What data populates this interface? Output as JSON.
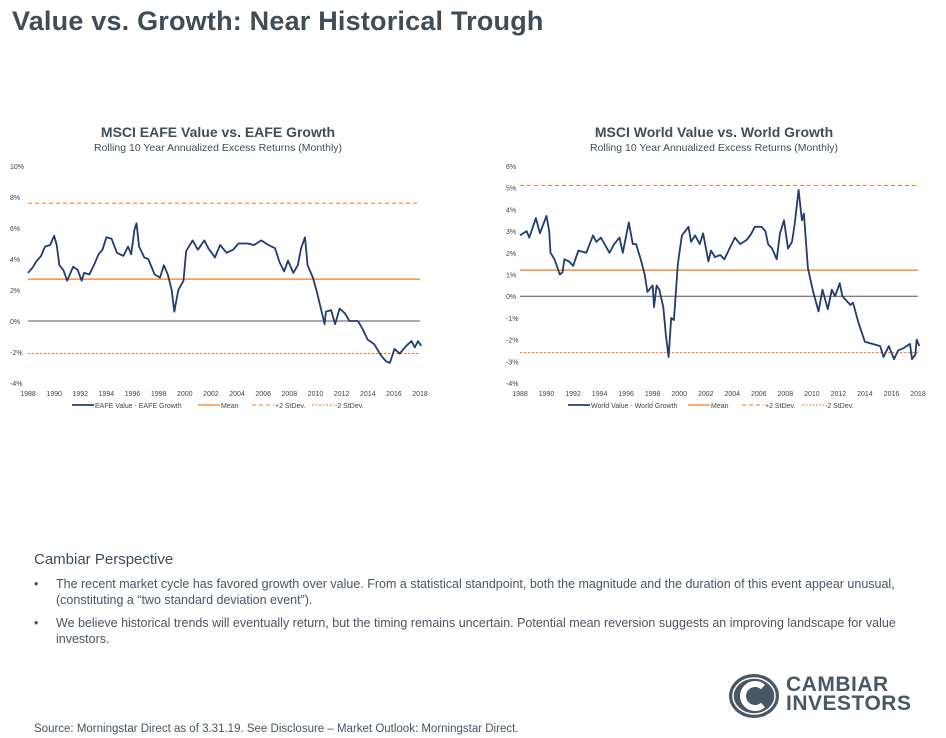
{
  "page": {
    "title": "Value vs. Growth: Near Historical Trough",
    "perspective_heading": "Cambiar Perspective",
    "bullets": [
      "The recent market cycle has favored growth over value. From a statistical standpoint, both the magnitude and the duration of this event appear unusual, (constituting a “two standard deviation event”).",
      "We believe historical trends will eventually return, but the timing remains uncertain.  Potential mean reversion suggests an improving landscape for value investors."
    ],
    "bullet_glyph": "•",
    "source": "Source: Morningstar Direct as of 3.31.19.  See Disclosure – Market Outlook: Morningstar Direct.",
    "logo": {
      "line1": "CAMBIAR",
      "line2": "INVESTORS"
    }
  },
  "colors": {
    "series": "#1f3d70",
    "mean": "#f47b20",
    "stdev": "#f47b20",
    "zero": "#555555",
    "text": "#3f4d59"
  },
  "chart_data": [
    {
      "type": "line",
      "title": "MSCI EAFE Value vs. EAFE Growth",
      "subtitle": "Rolling 10 Year Annualized Excess Returns (Monthly)",
      "xlim": [
        1988,
        2018
      ],
      "ylim": [
        -4,
        10
      ],
      "x_ticks": [
        "1988",
        "1990",
        "1992",
        "1994",
        "1996",
        "1998",
        "2000",
        "2002",
        "2004",
        "2006",
        "2008",
        "2010",
        "2012",
        "2014",
        "2016",
        "2018"
      ],
      "y_ticks": [
        "10%",
        "8%",
        "6%",
        "4%",
        "2%",
        "0%",
        "-2%",
        "-4%"
      ],
      "y_tick_values": [
        10,
        8,
        6,
        4,
        2,
        0,
        -2,
        -4
      ],
      "grid": false,
      "legend_position": "bottom",
      "legend": [
        "EAFE Value - EAFE Growth",
        "Mean",
        "+2 StDev.",
        "-2 StDev."
      ],
      "mean": 2.7,
      "plus2sd": 7.6,
      "minus2sd": -2.1,
      "series": [
        {
          "name": "EAFE Value - EAFE Growth",
          "x": [
            1988.0,
            1988.4,
            1988.6,
            1989.0,
            1989.3,
            1989.7,
            1990.0,
            1990.2,
            1990.4,
            1990.7,
            1991.0,
            1991.2,
            1991.45,
            1991.8,
            1992.1,
            1992.3,
            1992.7,
            1993.1,
            1993.4,
            1993.7,
            1994.0,
            1994.4,
            1994.8,
            1995.3,
            1995.65,
            1995.9,
            1996.15,
            1996.3,
            1996.5,
            1996.9,
            1997.2,
            1997.7,
            1998.1,
            1998.4,
            1998.7,
            1999.0,
            1999.2,
            1999.5,
            1999.9,
            2000.1,
            2000.6,
            2001.0,
            2001.5,
            2001.8,
            2002.3,
            2002.7,
            2003.2,
            2003.7,
            2004.1,
            2004.8,
            2005.3,
            2005.85,
            2006.4,
            2006.9,
            2007.25,
            2007.6,
            2007.9,
            2008.3,
            2008.65,
            2008.9,
            2009.2,
            2009.4,
            2009.8,
            2010.1,
            2010.3,
            2010.7,
            2010.8,
            2011.2,
            2011.5,
            2011.85,
            2012.25,
            2012.6,
            2013.25,
            2013.6,
            2014.0,
            2014.5,
            2015.0,
            2015.4,
            2015.7,
            2016.05,
            2016.45,
            2016.95,
            2017.35,
            2017.6,
            2017.85,
            2018.1
          ],
          "y": [
            3.1,
            3.5,
            3.8,
            4.2,
            4.8,
            4.9,
            5.5,
            4.9,
            3.6,
            3.3,
            2.6,
            3.0,
            3.5,
            3.3,
            2.6,
            3.1,
            3.0,
            3.7,
            4.3,
            4.6,
            5.4,
            5.3,
            4.4,
            4.2,
            4.8,
            4.3,
            5.9,
            6.3,
            4.8,
            4.1,
            4.0,
            3.0,
            2.8,
            3.6,
            3.0,
            2.0,
            0.6,
            2.0,
            2.6,
            4.5,
            5.2,
            4.6,
            5.2,
            4.7,
            4.1,
            4.9,
            4.4,
            4.6,
            5.0,
            5.0,
            4.9,
            5.2,
            4.9,
            4.7,
            3.8,
            3.2,
            3.9,
            3.1,
            3.6,
            4.7,
            5.4,
            3.6,
            2.8,
            1.9,
            1.2,
            -0.2,
            0.6,
            0.7,
            -0.2,
            0.8,
            0.5,
            0.0,
            0.0,
            -0.5,
            -1.2,
            -1.5,
            -2.2,
            -2.6,
            -2.7,
            -1.8,
            -2.1,
            -1.6,
            -1.3,
            -1.7,
            -1.3,
            -1.6
          ]
        }
      ]
    },
    {
      "type": "line",
      "title": "MSCI World Value vs. World Growth",
      "subtitle": "Rolling 10 Year Annualized Excess Returns (Monthly)",
      "xlim": [
        1988,
        2018
      ],
      "ylim": [
        -4,
        6
      ],
      "x_ticks": [
        "1988",
        "1990",
        "1992",
        "1994",
        "1996",
        "1998",
        "2000",
        "2002",
        "2004",
        "2006",
        "2008",
        "2010",
        "2012",
        "2014",
        "2016",
        "2018"
      ],
      "y_ticks": [
        "6%",
        "5%",
        "4%",
        "3%",
        "2%",
        "1%",
        "0%",
        "-1%",
        "-2%",
        "-3%",
        "-4%"
      ],
      "y_tick_values": [
        6,
        5,
        4,
        3,
        2,
        1,
        0,
        -1,
        -2,
        -3,
        -4
      ],
      "grid": false,
      "legend_position": "bottom",
      "legend": [
        "World Value - World Growth",
        "Mean",
        "+2 StDev.",
        "-2 StDev."
      ],
      "mean": 1.2,
      "plus2sd": 5.1,
      "minus2sd": -2.6,
      "series": [
        {
          "name": "World Value - World Growth",
          "x": [
            1988.0,
            1988.5,
            1988.7,
            1989.2,
            1989.5,
            1990.0,
            1990.2,
            1990.3,
            1990.6,
            1991.0,
            1991.2,
            1991.35,
            1991.7,
            1992.0,
            1992.4,
            1993.0,
            1993.5,
            1993.75,
            1994.1,
            1994.75,
            1995.1,
            1995.5,
            1995.75,
            1996.2,
            1996.5,
            1996.75,
            1997.1,
            1997.4,
            1997.6,
            1998.0,
            1998.1,
            1998.3,
            1998.5,
            1998.8,
            1999.0,
            1999.2,
            1999.4,
            1999.6,
            1999.9,
            2000.2,
            2000.7,
            2000.9,
            2001.2,
            2001.55,
            2001.8,
            2002.2,
            2002.4,
            2002.7,
            2003.1,
            2003.4,
            2003.8,
            2004.2,
            2004.6,
            2005.1,
            2005.45,
            2005.7,
            2006.2,
            2006.5,
            2006.7,
            2007.0,
            2007.35,
            2007.6,
            2007.9,
            2008.2,
            2008.5,
            2008.7,
            2009.0,
            2009.25,
            2009.4,
            2009.7,
            2010.1,
            2010.5,
            2010.8,
            2011.2,
            2011.5,
            2011.75,
            2012.1,
            2012.3,
            2012.9,
            2013.1,
            2013.5,
            2014.0,
            2015.15,
            2015.4,
            2015.8,
            2016.2,
            2016.5,
            2016.9,
            2017.4,
            2017.55,
            2017.8,
            2017.9,
            2018.1
          ],
          "y": [
            2.8,
            3.0,
            2.7,
            3.6,
            2.9,
            3.7,
            3.0,
            2.0,
            1.7,
            1.0,
            1.1,
            1.7,
            1.6,
            1.4,
            2.1,
            2.0,
            2.8,
            2.5,
            2.7,
            2.0,
            2.4,
            2.7,
            2.0,
            3.4,
            2.4,
            2.4,
            1.7,
            1.0,
            0.2,
            0.5,
            -0.5,
            0.5,
            0.3,
            -0.5,
            -1.8,
            -2.8,
            -1.0,
            -1.1,
            1.5,
            2.8,
            3.2,
            2.5,
            2.8,
            2.4,
            2.9,
            1.6,
            2.1,
            1.8,
            1.9,
            1.7,
            2.2,
            2.7,
            2.4,
            2.6,
            2.9,
            3.2,
            3.2,
            3.0,
            2.4,
            2.2,
            1.7,
            2.9,
            3.5,
            2.2,
            2.5,
            3.3,
            4.9,
            3.5,
            3.8,
            1.3,
            0.2,
            -0.7,
            0.3,
            -0.6,
            0.3,
            0.0,
            0.6,
            0.0,
            -0.4,
            -0.3,
            -1.2,
            -2.1,
            -2.3,
            -2.8,
            -2.3,
            -2.9,
            -2.5,
            -2.4,
            -2.2,
            -2.9,
            -2.7,
            -2.0,
            -2.3
          ]
        }
      ]
    }
  ]
}
